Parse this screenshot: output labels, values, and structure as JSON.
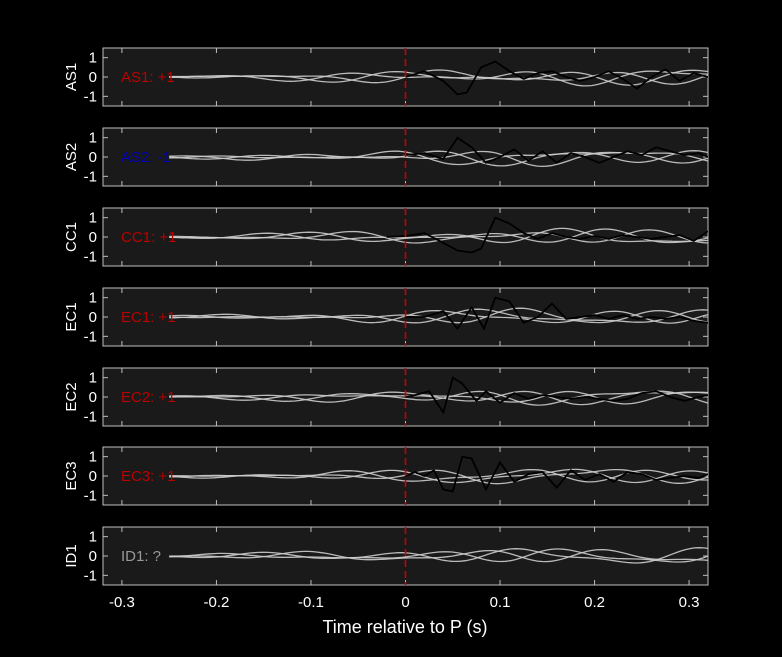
{
  "chart_data": {
    "type": "line",
    "xlabel": "Time relative to P (s)",
    "xlim": [
      -0.32,
      0.32
    ],
    "ylim": [
      -1.5,
      1.5
    ],
    "xticks": [
      -0.3,
      -0.2,
      -0.1,
      0,
      0.1,
      0.2,
      0.3
    ],
    "xtick_labels": [
      "-0.3",
      "-0.2",
      "-0.1",
      "0",
      "0.1",
      "0.2",
      "0.3"
    ],
    "yticks": [
      1,
      0,
      -1
    ],
    "ytick_labels": [
      "1",
      "0",
      "-1"
    ],
    "p_arrival_time": 0,
    "colors": {
      "background": "#000000",
      "panel": "#1a1a1a",
      "axis": "#bfbfbf",
      "gray_trace": "#cccccc",
      "black_trace": "#000000",
      "marker": "#cc0000",
      "positive": "#bb0000",
      "negative": "#0000bb",
      "unknown": "#999999"
    },
    "panels": [
      {
        "station": "AS1",
        "polarity_label": "AS1: +1",
        "polarity": "+1",
        "black_trace": {
          "t": [
            0.0,
            0.02,
            0.04,
            0.055,
            0.065,
            0.08,
            0.095,
            0.11,
            0.125,
            0.14,
            0.155,
            0.17,
            0.185,
            0.2,
            0.215,
            0.23,
            0.245,
            0.26,
            0.275,
            0.29,
            0.305,
            0.32
          ],
          "v": [
            0.0,
            0.3,
            -0.2,
            -0.9,
            -0.8,
            0.5,
            0.8,
            0.3,
            -0.1,
            0.2,
            0.3,
            0.0,
            -0.2,
            0.0,
            0.3,
            -0.1,
            -0.6,
            0.0,
            0.4,
            -0.2,
            0.2,
            0.0
          ]
        }
      },
      {
        "station": "AS2",
        "polarity_label": "AS2: -1",
        "polarity": "-1",
        "black_trace": {
          "t": [
            0.0,
            0.02,
            0.04,
            0.055,
            0.07,
            0.085,
            0.1,
            0.115,
            0.13,
            0.145,
            0.16,
            0.175,
            0.19,
            0.205,
            0.22,
            0.235,
            0.25,
            0.265,
            0.28,
            0.295,
            0.31,
            0.32
          ],
          "v": [
            0.1,
            0.2,
            -0.1,
            1.0,
            0.5,
            -0.3,
            0.0,
            0.4,
            -0.2,
            0.3,
            -0.3,
            0.2,
            0.0,
            -0.3,
            0.0,
            0.3,
            0.1,
            0.5,
            0.3,
            0.1,
            0.2,
            0.0
          ]
        }
      },
      {
        "station": "CC1",
        "polarity_label": "CC1: +1",
        "polarity": "+1",
        "black_trace": {
          "t": [
            -0.02,
            0.0,
            0.02,
            0.04,
            0.055,
            0.07,
            0.08,
            0.095,
            0.11,
            0.125,
            0.14,
            0.155,
            0.17,
            0.185,
            0.2,
            0.215,
            0.23,
            0.245,
            0.26,
            0.275,
            0.29,
            0.305,
            0.32
          ],
          "v": [
            0.0,
            0.05,
            0.2,
            -0.3,
            -0.7,
            -0.8,
            -0.6,
            1.0,
            0.7,
            0.2,
            -0.1,
            0.2,
            0.0,
            -0.1,
            0.05,
            -0.1,
            0.1,
            0.0,
            -0.1,
            0.0,
            0.1,
            -0.2,
            0.3
          ]
        }
      },
      {
        "station": "EC1",
        "polarity_label": "EC1: +1",
        "polarity": "+1",
        "black_trace": {
          "t": [
            0.0,
            0.02,
            0.04,
            0.055,
            0.07,
            0.083,
            0.095,
            0.11,
            0.125,
            0.14,
            0.155,
            0.17,
            0.185,
            0.2,
            0.215,
            0.23,
            0.245,
            0.26,
            0.275,
            0.29,
            0.305,
            0.32
          ],
          "v": [
            0.0,
            0.0,
            0.3,
            -0.6,
            0.5,
            -0.6,
            1.0,
            0.8,
            -0.3,
            0.0,
            0.7,
            -0.1,
            0.0,
            0.1,
            -0.1,
            0.1,
            -0.1,
            0.0,
            -0.1,
            0.0,
            -0.2,
            -0.3
          ]
        }
      },
      {
        "station": "EC2",
        "polarity_label": "EC2: +1",
        "polarity": "+1",
        "black_trace": {
          "t": [
            0.0,
            0.01,
            0.025,
            0.04,
            0.05,
            0.06,
            0.075,
            0.085,
            0.1,
            0.115,
            0.13,
            0.145,
            0.16,
            0.175,
            0.19,
            0.205,
            0.22,
            0.235,
            0.25,
            0.265,
            0.28,
            0.295,
            0.31,
            0.32
          ],
          "v": [
            0.0,
            0.1,
            0.3,
            -0.8,
            1.0,
            0.7,
            -0.2,
            0.3,
            -0.3,
            0.2,
            -0.1,
            0.1,
            0.0,
            -0.1,
            0.0,
            -0.1,
            -0.2,
            -0.1,
            0.2,
            0.3,
            0.0,
            -0.2,
            0.0,
            0.1
          ]
        }
      },
      {
        "station": "EC3",
        "polarity_label": "EC3: +1",
        "polarity": "+1",
        "black_trace": {
          "t": [
            0.0,
            0.01,
            0.02,
            0.03,
            0.04,
            0.05,
            0.06,
            0.07,
            0.085,
            0.1,
            0.115,
            0.13,
            0.145,
            0.16,
            0.175,
            0.19,
            0.205,
            0.22,
            0.235,
            0.25,
            0.265,
            0.28,
            0.295,
            0.31,
            0.32
          ],
          "v": [
            0.0,
            0.2,
            0.0,
            0.3,
            -0.7,
            -0.8,
            1.0,
            0.9,
            -0.7,
            0.7,
            -0.3,
            0.1,
            0.2,
            -0.6,
            0.3,
            -0.2,
            0.1,
            -0.3,
            0.2,
            0.1,
            -0.2,
            -0.1,
            0.0,
            -0.1,
            0.1
          ]
        }
      },
      {
        "station": "ID1",
        "polarity_label": "ID1: ?",
        "polarity": "?",
        "black_trace": null
      }
    ]
  }
}
